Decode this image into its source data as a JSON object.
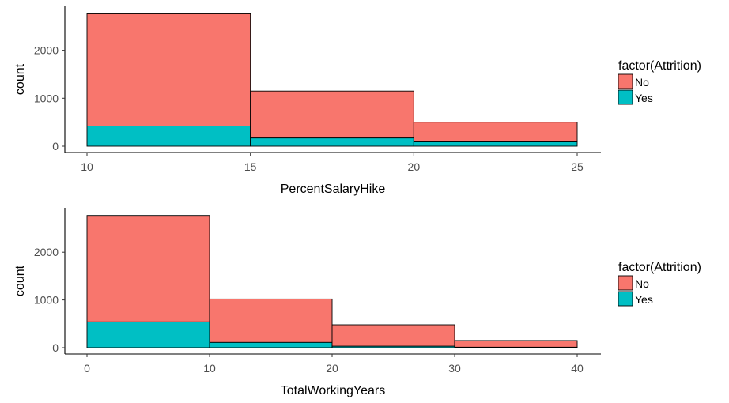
{
  "colors": {
    "No": "#F8766D",
    "Yes": "#00BFC4"
  },
  "chart_data": [
    {
      "type": "bar",
      "subtype": "stacked-histogram",
      "title": "",
      "xlabel": "PercentSalaryHike",
      "ylabel": "count",
      "xlim": [
        10,
        25
      ],
      "ylim": [
        0,
        2750
      ],
      "x_ticks": [
        "10",
        "15",
        "20",
        "25"
      ],
      "y_ticks": [
        "0",
        "1000",
        "2000"
      ],
      "bins": [
        [
          10,
          15
        ],
        [
          15,
          20
        ],
        [
          20,
          25
        ]
      ],
      "series": [
        {
          "name": "Yes",
          "values": [
            420,
            170,
            90
          ]
        },
        {
          "name": "No",
          "values": [
            2340,
            980,
            410
          ]
        }
      ],
      "legend": {
        "title": "factor(Attrition)",
        "placement": "right",
        "entries": [
          "No",
          "Yes"
        ]
      },
      "grid": false
    },
    {
      "type": "bar",
      "subtype": "stacked-histogram",
      "title": "",
      "xlabel": "TotalWorkingYears",
      "ylabel": "count",
      "xlim": [
        0,
        40
      ],
      "ylim": [
        0,
        2800
      ],
      "x_ticks": [
        "0",
        "10",
        "20",
        "30",
        "40"
      ],
      "y_ticks": [
        "0",
        "1000",
        "2000"
      ],
      "bins": [
        [
          0,
          10
        ],
        [
          10,
          20
        ],
        [
          20,
          30
        ],
        [
          30,
          40
        ]
      ],
      "series": [
        {
          "name": "Yes",
          "values": [
            540,
            110,
            30,
            10
          ]
        },
        {
          "name": "No",
          "values": [
            2230,
            910,
            450,
            140
          ]
        }
      ],
      "legend": {
        "title": "factor(Attrition)",
        "placement": "right",
        "entries": [
          "No",
          "Yes"
        ]
      },
      "grid": false
    }
  ]
}
